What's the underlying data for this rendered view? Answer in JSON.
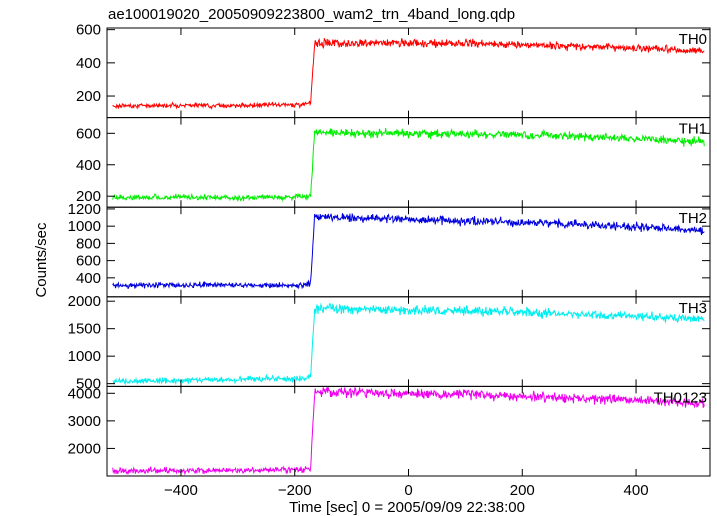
{
  "chart_data": {
    "type": "line",
    "title": "ae100019020_20050909223800_wam2_trn_4band_long.qdp",
    "xlabel": "Time [sec] 0 = 2005/09/09 22:38:00",
    "ylabel": "Counts/sec",
    "xlim": [
      -530,
      530
    ],
    "xticks": [
      -400,
      -200,
      0,
      200,
      400
    ],
    "transition_x": -172,
    "grid": false,
    "panels": [
      {
        "name": "TH0",
        "color": "#ff0000",
        "ylim": [
          70,
          610
        ],
        "yticks": [
          200,
          400,
          600
        ],
        "x": [
          -520,
          -400,
          -300,
          -180,
          -172,
          -165,
          0,
          100,
          200,
          300,
          400,
          520
        ],
        "y": [
          140,
          145,
          142,
          150,
          160,
          520,
          520,
          515,
          510,
          500,
          490,
          470
        ]
      },
      {
        "name": "TH1",
        "color": "#00ee00",
        "ylim": [
          130,
          700
        ],
        "yticks": [
          200,
          400,
          600
        ],
        "x": [
          -520,
          -400,
          -300,
          -180,
          -172,
          -165,
          0,
          100,
          200,
          300,
          400,
          520
        ],
        "y": [
          190,
          195,
          190,
          195,
          210,
          600,
          600,
          595,
          590,
          580,
          565,
          545
        ]
      },
      {
        "name": "TH2",
        "color": "#0000dd",
        "ylim": [
          180,
          1220
        ],
        "yticks": [
          400,
          600,
          800,
          1000,
          1200
        ],
        "x": [
          -520,
          -400,
          -300,
          -180,
          -172,
          -165,
          0,
          100,
          200,
          300,
          400,
          520
        ],
        "y": [
          310,
          320,
          315,
          310,
          350,
          1110,
          1080,
          1060,
          1040,
          1020,
          990,
          950
        ]
      },
      {
        "name": "TH3",
        "color": "#00eeee",
        "ylim": [
          450,
          2080
        ],
        "yticks": [
          500,
          1000,
          1500,
          2000
        ],
        "x": [
          -520,
          -400,
          -300,
          -180,
          -172,
          -165,
          0,
          100,
          200,
          300,
          400,
          520
        ],
        "y": [
          540,
          560,
          580,
          600,
          650,
          1870,
          1840,
          1820,
          1800,
          1760,
          1720,
          1680
        ]
      },
      {
        "name": "TH0123",
        "color": "#ee00ee",
        "ylim": [
          1000,
          4250
        ],
        "yticks": [
          2000,
          3000,
          4000
        ],
        "x": [
          -520,
          -400,
          -300,
          -180,
          -172,
          -165,
          0,
          100,
          200,
          300,
          400,
          520
        ],
        "y": [
          1180,
          1200,
          1200,
          1230,
          1300,
          4080,
          4000,
          3950,
          3900,
          3820,
          3740,
          3640
        ]
      }
    ]
  }
}
